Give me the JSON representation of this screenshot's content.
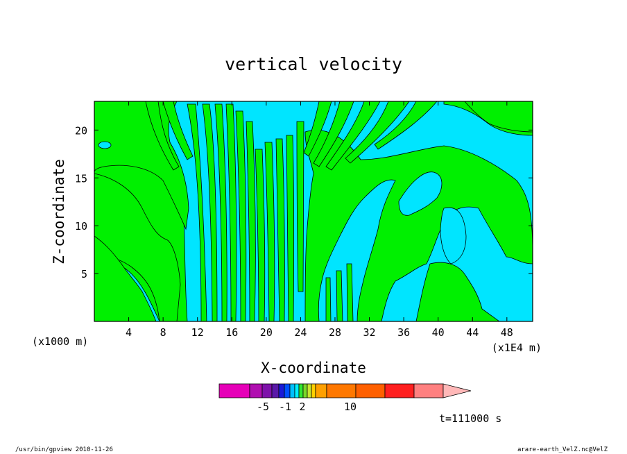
{
  "chart_data": {
    "type": "heatmap",
    "title": "vertical velocity",
    "xlabel": "X-coordinate",
    "ylabel": "Z-coordinate",
    "x_unit_label": "(x1000 m)",
    "x_scale_label": "(x1E4 m)",
    "x_ticks": [
      4,
      8,
      12,
      16,
      20,
      24,
      28,
      32,
      36,
      40,
      44,
      48
    ],
    "y_ticks": [
      5,
      10,
      15,
      20
    ],
    "xlim": [
      0,
      51
    ],
    "ylim": [
      0,
      23
    ],
    "time_label": "t=111000 s",
    "colorbar": {
      "labels": [
        "-5",
        "-1",
        "2",
        "10"
      ],
      "colors": [
        "#e600b8",
        "#b00fb0",
        "#7e12aa",
        "#5a18a8",
        "#1a1ad8",
        "#0050ff",
        "#00bfff",
        "#00f0ff",
        "#32e632",
        "#7ad82a",
        "#c8e632",
        "#ffd000",
        "#ffa000",
        "#ff7800",
        "#ff6000",
        "#ff2020",
        "#ff8080",
        "#ffb8b8"
      ]
    },
    "levels_shown": {
      "negative_fill": "#00e5ff",
      "positive_fill": "#00f000"
    }
  },
  "footer": {
    "left": "/usr/bin/gpview  2010-11-26",
    "right": "arare-earth_VelZ.nc@VelZ"
  }
}
